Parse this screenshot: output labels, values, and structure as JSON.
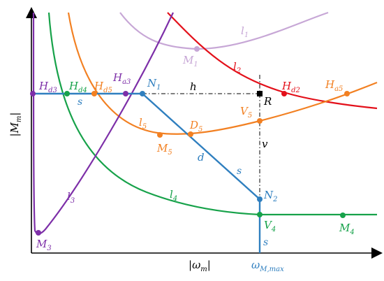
{
  "axes": {
    "y_label_pre": "|",
    "y_label_main": "M",
    "y_label_sub": "m",
    "y_label_post": "|",
    "x_label_pre": "|",
    "x_label_main": "ω",
    "x_label_sub": "m",
    "x_label_post": "|",
    "x_tick_main": "ω",
    "x_tick_sub": "M,max"
  },
  "colors": {
    "axis": "#000000",
    "purple": "#7d2fa8",
    "green": "#17a24a",
    "orange": "#f28022",
    "blue": "#2f7fbf",
    "red": "#e3101a",
    "lilac": "#c7a7d6",
    "dashdot": "#000000"
  },
  "curves": {
    "l1": {
      "main": "l",
      "sub": "1"
    },
    "l2": {
      "main": "l",
      "sub": "2"
    },
    "l3": {
      "main": "l",
      "sub": "3"
    },
    "l4": {
      "main": "l",
      "sub": "4"
    },
    "l5": {
      "main": "l",
      "sub": "5"
    }
  },
  "segments": {
    "h": "h",
    "v": "v",
    "d": "d",
    "s_top": "s",
    "s_mid": "s",
    "s_bottom": "s"
  },
  "points": {
    "Hd3": {
      "main": "H",
      "sub": "d3"
    },
    "Hd4": {
      "main": "H",
      "sub": "d4"
    },
    "Hd5": {
      "main": "H",
      "sub": "d5"
    },
    "Ha3": {
      "main": "H",
      "sub": "a3"
    },
    "N1": {
      "main": "N",
      "sub": "1"
    },
    "R": {
      "main": "R",
      "sub": ""
    },
    "Hd2": {
      "main": "H",
      "sub": "d2"
    },
    "Ha5": {
      "main": "H",
      "sub": "a5"
    },
    "V5": {
      "main": "V",
      "sub": "5"
    },
    "D5": {
      "main": "D",
      "sub": "5"
    },
    "M5": {
      "main": "M",
      "sub": "5"
    },
    "M1": {
      "main": "M",
      "sub": "1"
    },
    "N2": {
      "main": "N",
      "sub": "2"
    },
    "V4": {
      "main": "V",
      "sub": "4"
    },
    "M4": {
      "main": "M",
      "sub": "4"
    },
    "M3": {
      "main": "M",
      "sub": "3"
    }
  }
}
